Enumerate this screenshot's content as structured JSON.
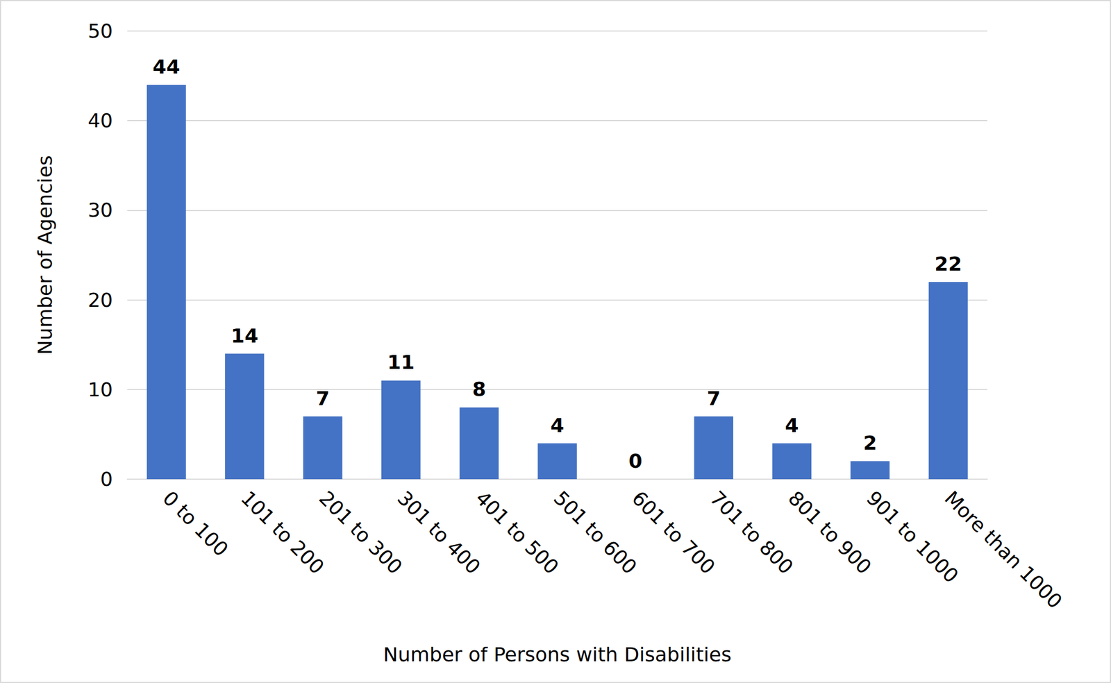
{
  "chart_data": {
    "type": "bar",
    "x_label": "Number of Persons with Disabilities",
    "y_label": "Number of Agencies",
    "categories": [
      "0 to 100",
      "101 to 200",
      "201 to 300",
      "301 to 400",
      "401 to 500",
      "501 to 600",
      "601 to 700",
      "701 to 800",
      "801 to 900",
      "901 to 1000",
      "More than 1000"
    ],
    "values": [
      44,
      14,
      7,
      11,
      8,
      4,
      0,
      7,
      4,
      2,
      22
    ],
    "color": "#4472c4",
    "ylim": [
      0,
      50
    ],
    "yticks": [
      0,
      10,
      20,
      30,
      40,
      50
    ],
    "grid": true,
    "data_labels": true
  }
}
